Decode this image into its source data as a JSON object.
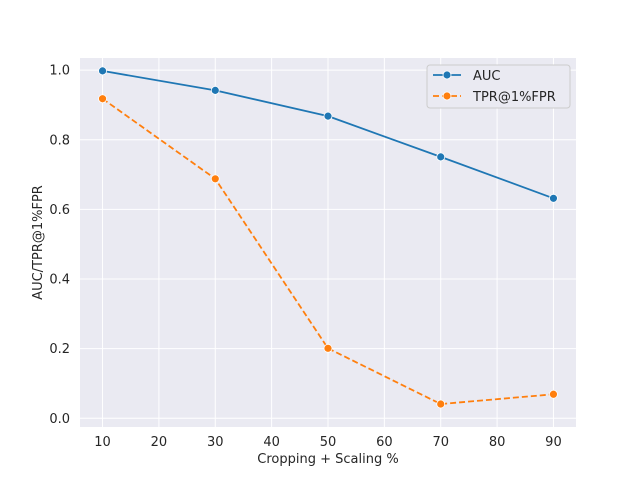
{
  "chart_data": {
    "type": "line",
    "title": "",
    "xlabel": "Cropping + Scaling %",
    "ylabel": "AUC/TPR@1%FPR",
    "x": [
      10,
      30,
      50,
      70,
      90
    ],
    "xticks": [
      10,
      20,
      30,
      40,
      50,
      60,
      70,
      80,
      90
    ],
    "yticks": [
      0.0,
      0.2,
      0.4,
      0.6,
      0.8,
      1.0
    ],
    "xlim": [
      6,
      94
    ],
    "ylim": [
      -0.025,
      1.035
    ],
    "grid": true,
    "legend_position": "top-right",
    "background": "#eaeaf2",
    "series": [
      {
        "name": "AUC",
        "values": [
          0.998,
          0.942,
          0.868,
          0.751,
          0.632
        ],
        "color": "#1f77b4",
        "line_style": "solid",
        "marker": "circle"
      },
      {
        "name": "TPR@1%FPR",
        "values": [
          0.918,
          0.688,
          0.201,
          0.041,
          0.069
        ],
        "color": "#ff7f0e",
        "line_style": "dashed",
        "marker": "circle"
      }
    ]
  }
}
